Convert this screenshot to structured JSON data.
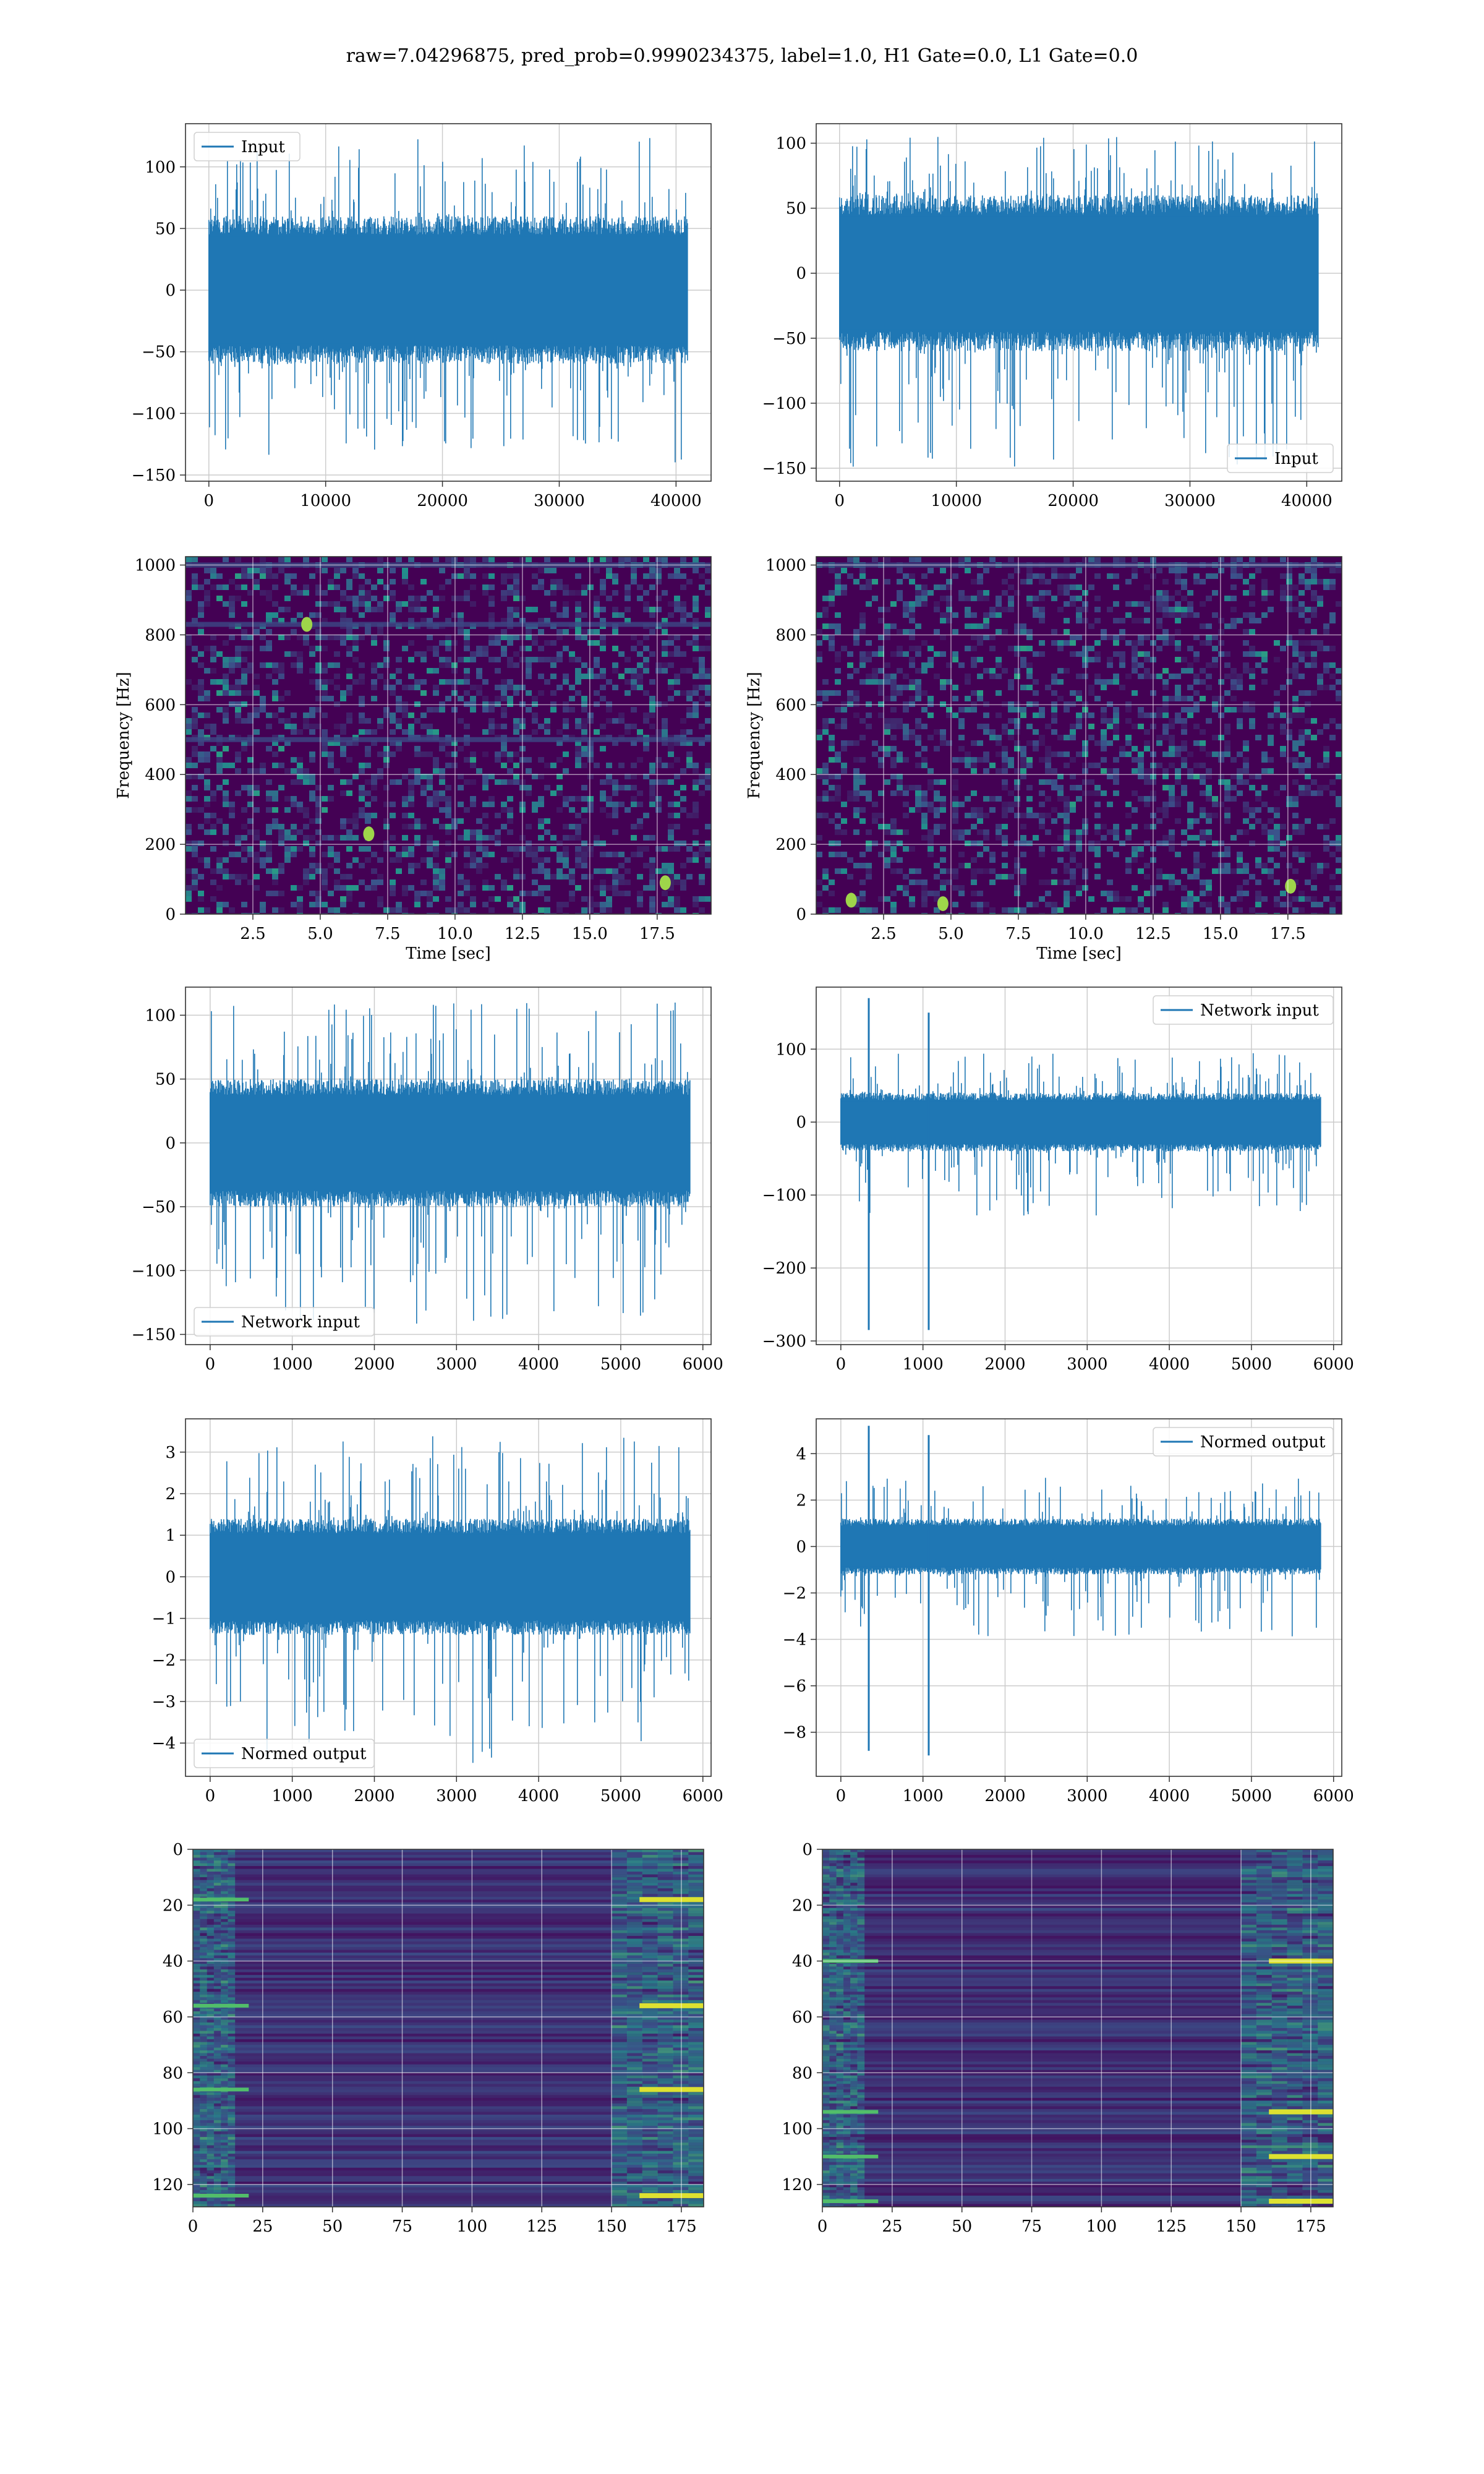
{
  "figure": {
    "title": "raw=7.04296875, pred_prob=0.9990234375, label=1.0, H1 Gate=0.0, L1 Gate=0.0"
  },
  "colors": {
    "series": "#1f77b4",
    "grid": "#cccccc",
    "spine": "#333333",
    "viridis_low": "#440154",
    "viridis_mid": "#21918c",
    "viridis_high": "#fde725"
  },
  "chart_data": [
    {
      "id": "H1-input",
      "type": "line",
      "legend": "Input",
      "legend_loc": "upper-left",
      "xlim": [
        -2000,
        43000
      ],
      "ylim": [
        -155,
        135
      ],
      "xticks": [
        0,
        10000,
        20000,
        30000,
        40000
      ],
      "xtick_labels": [
        "0",
        "10000",
        "20000",
        "30000",
        "40000"
      ],
      "yticks": [
        100,
        50,
        0,
        -50,
        -100,
        -150
      ],
      "ytick_labels": [
        "100",
        "50",
        "0",
        "−50",
        "−100",
        "−150"
      ],
      "xlabel": "",
      "ylabel": "",
      "signal": {
        "n": 40960,
        "core_min": -60,
        "core_max": 60,
        "peak_max": 125,
        "peak_min": -140
      },
      "grid": true
    },
    {
      "id": "L1-input",
      "type": "line",
      "legend": "Input",
      "legend_loc": "lower-right",
      "xlim": [
        -2000,
        43000
      ],
      "ylim": [
        -160,
        115
      ],
      "xticks": [
        0,
        10000,
        20000,
        30000,
        40000
      ],
      "xtick_labels": [
        "0",
        "10000",
        "20000",
        "30000",
        "40000"
      ],
      "yticks": [
        100,
        50,
        0,
        -50,
        -100,
        -150
      ],
      "ytick_labels": [
        "100",
        "50",
        "0",
        "−50",
        "−100",
        "−150"
      ],
      "xlabel": "",
      "ylabel": "",
      "signal": {
        "n": 40960,
        "core_min": -60,
        "core_max": 60,
        "peak_max": 105,
        "peak_min": -150
      },
      "grid": true
    },
    {
      "id": "H1-spectrogram",
      "type": "heatmap",
      "xlim": [
        0,
        19.5
      ],
      "ylim": [
        0,
        1024
      ],
      "xticks": [
        2.5,
        5.0,
        7.5,
        10.0,
        12.5,
        15.0,
        17.5
      ],
      "xtick_labels": [
        "2.5",
        "5.0",
        "7.5",
        "10.0",
        "12.5",
        "15.0",
        "17.5"
      ],
      "yticks": [
        0,
        200,
        400,
        600,
        800,
        1000
      ],
      "ytick_labels": [
        "0",
        "200",
        "400",
        "600",
        "800",
        "1000"
      ],
      "xlabel": "Time [sec]",
      "ylabel": "Frequency [Hz]",
      "features": {
        "lines_hz": [
          830,
          500,
          1000
        ],
        "hot_spots": [
          [
            4.5,
            830
          ],
          [
            17.8,
            90
          ],
          [
            6.8,
            230
          ]
        ]
      },
      "grid": true
    },
    {
      "id": "L1-spectrogram",
      "type": "heatmap",
      "xlim": [
        0,
        19.5
      ],
      "ylim": [
        0,
        1024
      ],
      "xticks": [
        2.5,
        5.0,
        7.5,
        10.0,
        12.5,
        15.0,
        17.5
      ],
      "xtick_labels": [
        "2.5",
        "5.0",
        "7.5",
        "10.0",
        "12.5",
        "15.0",
        "17.5"
      ],
      "yticks": [
        0,
        200,
        400,
        600,
        800,
        1000
      ],
      "ytick_labels": [
        "0",
        "200",
        "400",
        "600",
        "800",
        "1000"
      ],
      "xlabel": "Time [sec]",
      "ylabel": "Frequency [Hz]",
      "features": {
        "lines_hz": [
          1000
        ],
        "hot_spots": [
          [
            1.3,
            40
          ],
          [
            4.7,
            30
          ],
          [
            17.6,
            80
          ]
        ]
      },
      "grid": true
    },
    {
      "id": "H1-network-input",
      "type": "line",
      "legend": "Network input",
      "legend_loc": "lower-left",
      "xlim": [
        -300,
        6100
      ],
      "ylim": [
        -158,
        122
      ],
      "xticks": [
        0,
        1000,
        2000,
        3000,
        4000,
        5000,
        6000
      ],
      "xtick_labels": [
        "0",
        "1000",
        "2000",
        "3000",
        "4000",
        "5000",
        "6000"
      ],
      "yticks": [
        100,
        50,
        0,
        -50,
        -100,
        -150
      ],
      "ytick_labels": [
        "100",
        "50",
        "0",
        "−50",
        "−100",
        "−150"
      ],
      "xlabel": "",
      "ylabel": "",
      "signal": {
        "n": 5840,
        "core_min": -50,
        "core_max": 50,
        "peak_max": 110,
        "peak_min": -145
      },
      "spikes": [],
      "grid": true
    },
    {
      "id": "L1-network-input",
      "type": "line",
      "legend": "Network input",
      "legend_loc": "upper-right",
      "xlim": [
        -300,
        6100
      ],
      "ylim": [
        -305,
        185
      ],
      "xticks": [
        0,
        1000,
        2000,
        3000,
        4000,
        5000,
        6000
      ],
      "xtick_labels": [
        "0",
        "1000",
        "2000",
        "3000",
        "4000",
        "5000",
        "6000"
      ],
      "yticks": [
        100,
        0,
        -100,
        -200,
        -300
      ],
      "ytick_labels": [
        "100",
        "0",
        "−100",
        "−200",
        "−300"
      ],
      "xlabel": "",
      "ylabel": "",
      "signal": {
        "n": 5840,
        "core_min": -40,
        "core_max": 40,
        "peak_max": 95,
        "peak_min": -130
      },
      "spikes": [
        [
          340,
          170,
          -285
        ],
        [
          1070,
          150,
          -285
        ]
      ],
      "grid": true
    },
    {
      "id": "H1-normed-output",
      "type": "line",
      "legend": "Normed output",
      "legend_loc": "lower-left",
      "xlim": [
        -300,
        6100
      ],
      "ylim": [
        -4.8,
        3.8
      ],
      "xticks": [
        0,
        1000,
        2000,
        3000,
        4000,
        5000,
        6000
      ],
      "xtick_labels": [
        "0",
        "1000",
        "2000",
        "3000",
        "4000",
        "5000",
        "6000"
      ],
      "yticks": [
        3,
        2,
        1,
        0,
        -1,
        -2,
        -3,
        -4
      ],
      "ytick_labels": [
        "3",
        "2",
        "1",
        "0",
        "−1",
        "−2",
        "−3",
        "−4"
      ],
      "xlabel": "",
      "ylabel": "",
      "signal": {
        "n": 5840,
        "core_min": -1.4,
        "core_max": 1.4,
        "peak_max": 3.4,
        "peak_min": -4.5
      },
      "spikes": [],
      "grid": true
    },
    {
      "id": "L1-normed-output",
      "type": "line",
      "legend": "Normed output",
      "legend_loc": "upper-right",
      "xlim": [
        -300,
        6100
      ],
      "ylim": [
        -9.9,
        5.5
      ],
      "xticks": [
        0,
        1000,
        2000,
        3000,
        4000,
        5000,
        6000
      ],
      "xtick_labels": [
        "0",
        "1000",
        "2000",
        "3000",
        "4000",
        "5000",
        "6000"
      ],
      "yticks": [
        4,
        2,
        0,
        -2,
        -4,
        -6,
        -8
      ],
      "ytick_labels": [
        "4",
        "2",
        "0",
        "−2",
        "−4",
        "−6",
        "−8"
      ],
      "xlabel": "",
      "ylabel": "",
      "signal": {
        "n": 5840,
        "core_min": -1.2,
        "core_max": 1.2,
        "peak_max": 3.0,
        "peak_min": -4.0
      },
      "spikes": [
        [
          340,
          5.2,
          -8.8
        ],
        [
          1070,
          4.8,
          -9.0
        ]
      ],
      "grid": true
    },
    {
      "id": "H1-feature-map",
      "type": "heatmap",
      "xlim": [
        0,
        183
      ],
      "ylim": [
        128,
        0
      ],
      "xticks": [
        0,
        25,
        50,
        75,
        100,
        125,
        150,
        175
      ],
      "xtick_labels": [
        "0",
        "25",
        "50",
        "75",
        "100",
        "125",
        "150",
        "175"
      ],
      "yticks": [
        0,
        20,
        40,
        60,
        80,
        100,
        120
      ],
      "ytick_labels": [
        "0",
        "20",
        "40",
        "60",
        "80",
        "100",
        "120"
      ],
      "xlabel": "",
      "ylabel": "",
      "features": {
        "bright_edges": [
          [
            0,
            15
          ],
          [
            150,
            183
          ]
        ],
        "hot_rows": [
          18,
          56,
          86,
          124
        ]
      },
      "grid": true
    },
    {
      "id": "L1-feature-map",
      "type": "heatmap",
      "xlim": [
        0,
        183
      ],
      "ylim": [
        128,
        0
      ],
      "xticks": [
        0,
        25,
        50,
        75,
        100,
        125,
        150,
        175
      ],
      "xtick_labels": [
        "0",
        "25",
        "50",
        "75",
        "100",
        "125",
        "150",
        "175"
      ],
      "yticks": [
        0,
        20,
        40,
        60,
        80,
        100,
        120
      ],
      "ytick_labels": [
        "0",
        "20",
        "40",
        "60",
        "80",
        "100",
        "120"
      ],
      "xlabel": "",
      "ylabel": "",
      "features": {
        "bright_edges": [
          [
            0,
            15
          ],
          [
            150,
            183
          ]
        ],
        "hot_rows": [
          40,
          94,
          110,
          126
        ]
      },
      "grid": true
    }
  ]
}
